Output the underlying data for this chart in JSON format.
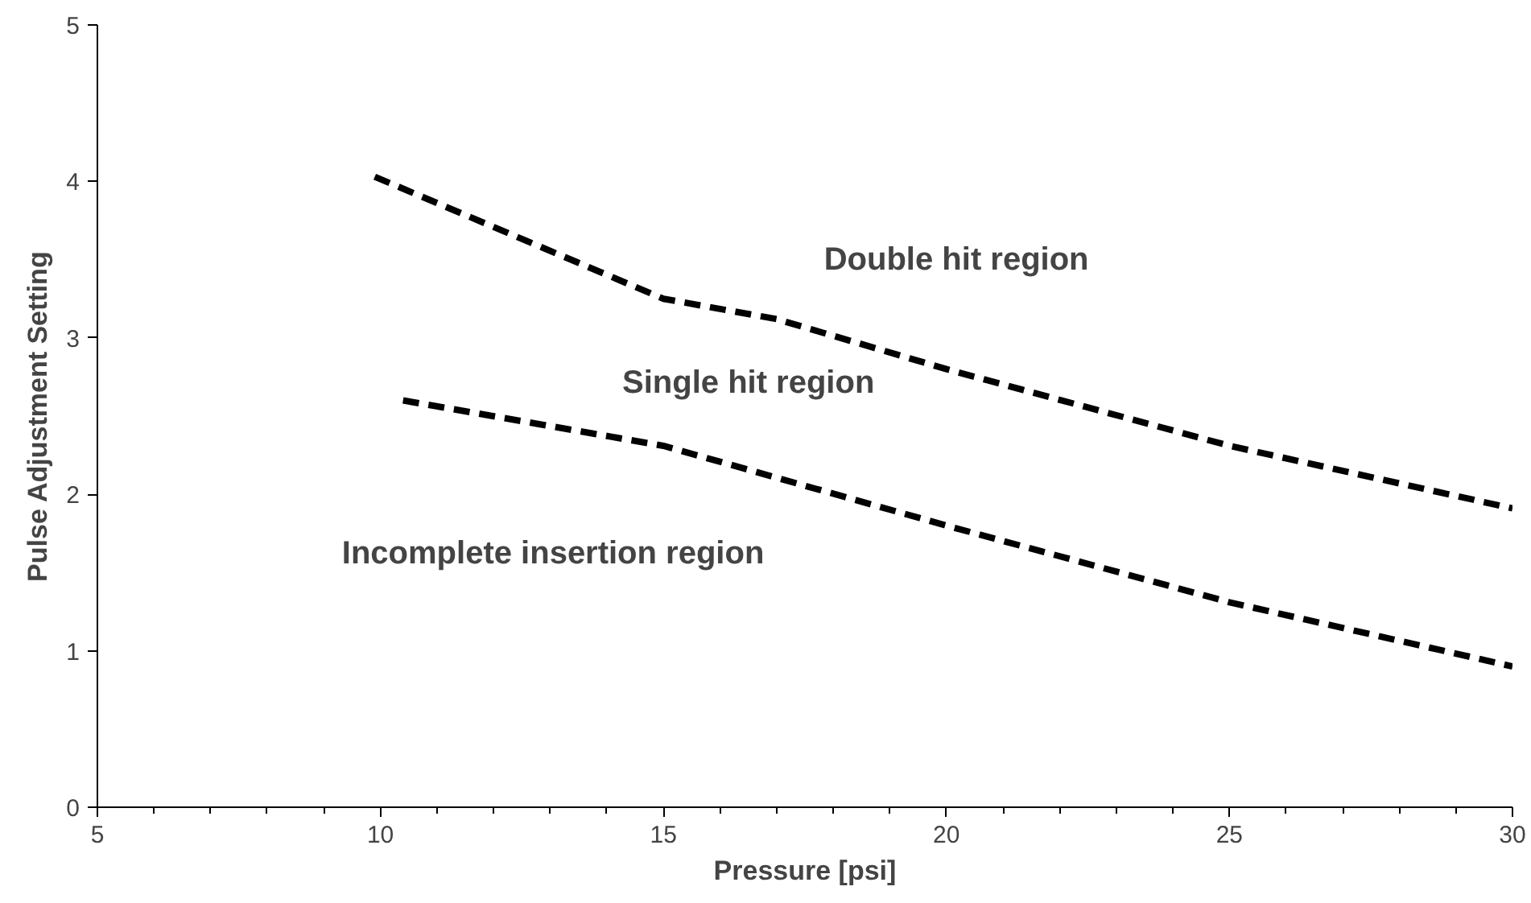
{
  "chart_data": {
    "type": "line",
    "xlabel": "Pressure [psi]",
    "ylabel": "Pulse Adjustment Setting",
    "xlim": [
      5,
      30
    ],
    "ylim": [
      0,
      5
    ],
    "xticks": [
      5,
      10,
      15,
      20,
      25,
      30
    ],
    "yticks": [
      0,
      1,
      2,
      3,
      4,
      5
    ],
    "grid": false,
    "marker": "none",
    "line_style": "dashed",
    "series": [
      {
        "color": "#000000",
        "x": [
          9.9,
          15,
          17,
          20,
          25,
          30
        ],
        "values": [
          4.03,
          3.25,
          3.12,
          2.8,
          2.31,
          1.91
        ]
      },
      {
        "color": "#000000",
        "x": [
          10.4,
          15,
          20,
          25,
          30
        ],
        "values": [
          2.6,
          2.31,
          1.8,
          1.31,
          0.9
        ]
      }
    ],
    "annotations": [
      "Double hit region",
      "Single hit region",
      "Incomplete insertion region"
    ]
  }
}
